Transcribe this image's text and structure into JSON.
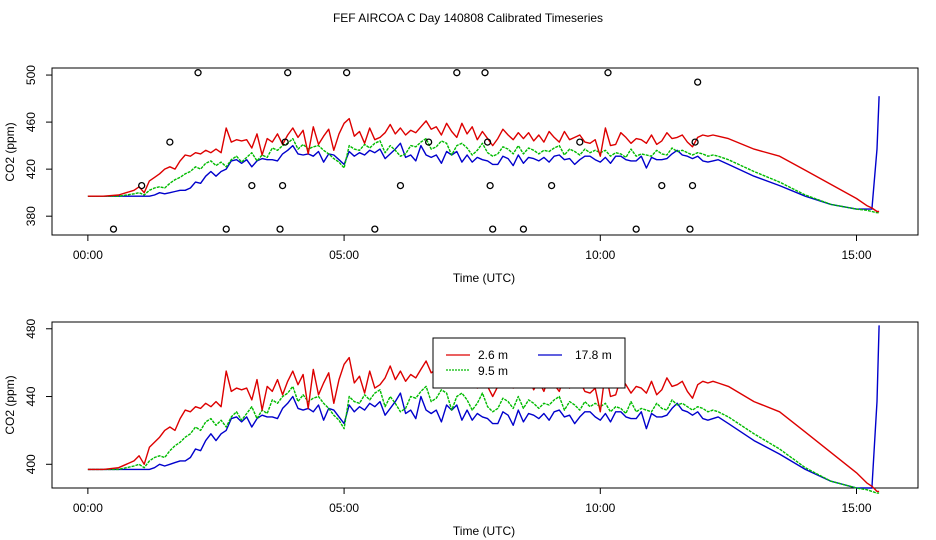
{
  "figure_title": "FEF AIRCOA C  Day 140808  Calibrated Timeseries",
  "colors": {
    "r2_6": "#dd0000",
    "r9_5": "#00bb00",
    "r17_8": "#0000cc",
    "axis": "#000000"
  },
  "chart_data": [
    {
      "type": "line",
      "title": "",
      "xlabel": "Time (UTC)",
      "ylabel": "CO2 (ppm)",
      "xlim": [
        -0.7,
        16.2
      ],
      "ylim": [
        364,
        506
      ],
      "xticks": [
        0,
        5,
        10,
        15
      ],
      "xtick_labels": [
        "00:00",
        "05:00",
        "10:00",
        "15:00"
      ],
      "yticks": [
        380,
        420,
        460,
        500
      ],
      "ytick_labels": [
        "380",
        "420",
        "460",
        "500"
      ],
      "grid": false,
      "legend": "none",
      "x": [
        0,
        0.3,
        0.6,
        0.9,
        1.0,
        1.1,
        1.2,
        1.3,
        1.4,
        1.5,
        1.6,
        1.7,
        1.8,
        1.9,
        2.0,
        2.1,
        2.2,
        2.3,
        2.4,
        2.5,
        2.6,
        2.7,
        2.8,
        2.9,
        3.0,
        3.1,
        3.2,
        3.3,
        3.4,
        3.5,
        3.6,
        3.7,
        3.8,
        3.9,
        4.0,
        4.1,
        4.2,
        4.3,
        4.4,
        4.5,
        4.6,
        4.7,
        4.8,
        4.9,
        5.0,
        5.1,
        5.2,
        5.3,
        5.4,
        5.5,
        5.6,
        5.7,
        5.8,
        5.9,
        6.0,
        6.1,
        6.2,
        6.3,
        6.4,
        6.5,
        6.6,
        6.7,
        6.8,
        6.9,
        7.0,
        7.1,
        7.2,
        7.3,
        7.4,
        7.5,
        7.6,
        7.7,
        7.8,
        7.9,
        8.0,
        8.1,
        8.2,
        8.3,
        8.4,
        8.5,
        8.6,
        8.7,
        8.8,
        8.9,
        9.0,
        9.1,
        9.2,
        9.3,
        9.4,
        9.5,
        9.6,
        9.7,
        9.8,
        9.9,
        10.0,
        10.1,
        10.2,
        10.3,
        10.4,
        10.5,
        10.6,
        10.7,
        10.8,
        10.9,
        11.0,
        11.1,
        11.2,
        11.3,
        11.4,
        11.5,
        11.6,
        11.7,
        11.8,
        11.9,
        12.0,
        12.1,
        12.2,
        12.3,
        12.5,
        13.0,
        13.5,
        14.0,
        14.5,
        15.0,
        15.2,
        15.3,
        15.4,
        15.44
      ],
      "series": [
        {
          "name": "2.6 m",
          "color_key": "r2_6",
          "values": [
            397,
            397,
            398,
            402,
            405,
            400,
            410,
            413,
            416,
            420,
            422,
            420,
            427,
            432,
            431,
            434,
            433,
            436,
            434,
            437,
            434,
            455,
            443,
            445,
            444,
            445,
            438,
            450,
            432,
            446,
            443,
            450,
            441,
            449,
            455,
            447,
            453,
            433,
            456,
            441,
            448,
            454,
            436,
            450,
            459,
            463,
            448,
            452,
            442,
            455,
            445,
            447,
            451,
            458,
            450,
            455,
            449,
            453,
            451,
            456,
            461,
            454,
            456,
            449,
            459,
            452,
            447,
            459,
            450,
            456,
            445,
            452,
            446,
            440,
            446,
            454,
            449,
            445,
            451,
            446,
            451,
            444,
            449,
            443,
            452,
            447,
            443,
            452,
            445,
            447,
            449,
            443,
            442,
            445,
            431,
            455,
            440,
            441,
            451,
            447,
            442,
            446,
            445,
            442,
            449,
            441,
            444,
            451,
            446,
            447,
            449,
            443,
            439,
            447,
            449,
            448,
            449,
            448,
            446,
            437,
            431,
            419,
            407,
            395,
            389,
            387,
            384,
            384
          ]
        },
        {
          "name": "9.5 m",
          "color_key": "r9_5",
          "values": [
            397,
            397,
            397,
            399,
            400,
            398,
            402,
            404,
            405,
            404,
            408,
            411,
            413,
            416,
            418,
            422,
            420,
            425,
            427,
            423,
            426,
            422,
            428,
            431,
            426,
            430,
            434,
            427,
            432,
            430,
            438,
            436,
            440,
            442,
            446,
            437,
            441,
            437,
            439,
            440,
            436,
            433,
            429,
            426,
            421,
            440,
            437,
            436,
            441,
            438,
            442,
            444,
            434,
            440,
            436,
            431,
            433,
            440,
            439,
            443,
            446,
            437,
            439,
            444,
            442,
            432,
            440,
            442,
            438,
            432,
            436,
            442,
            434,
            431,
            433,
            439,
            437,
            433,
            440,
            433,
            438,
            436,
            433,
            436,
            435,
            438,
            440,
            432,
            437,
            435,
            432,
            437,
            434,
            436,
            434,
            436,
            431,
            434,
            433,
            430,
            437,
            431,
            433,
            432,
            431,
            436,
            433,
            432,
            438,
            435,
            436,
            434,
            432,
            434,
            433,
            431,
            432,
            431,
            428,
            418,
            409,
            398,
            390,
            386,
            385,
            384,
            383,
            383
          ]
        },
        {
          "name": "17.8 m",
          "color_key": "r17_8",
          "values": [
            397,
            397,
            397,
            397,
            397,
            397,
            397,
            398,
            400,
            399,
            400,
            401,
            402,
            402,
            404,
            409,
            408,
            414,
            418,
            414,
            418,
            420,
            427,
            428,
            425,
            428,
            422,
            427,
            429,
            428,
            428,
            427,
            433,
            436,
            440,
            433,
            432,
            433,
            431,
            435,
            426,
            433,
            432,
            428,
            424,
            435,
            431,
            434,
            432,
            436,
            434,
            437,
            429,
            433,
            437,
            442,
            430,
            432,
            427,
            440,
            432,
            430,
            432,
            425,
            435,
            432,
            435,
            426,
            432,
            426,
            430,
            428,
            427,
            424,
            424,
            431,
            429,
            423,
            432,
            425,
            430,
            429,
            427,
            430,
            426,
            431,
            432,
            428,
            429,
            424,
            428,
            431,
            431,
            428,
            426,
            430,
            425,
            431,
            431,
            428,
            427,
            427,
            431,
            421,
            430,
            428,
            428,
            429,
            433,
            436,
            432,
            431,
            429,
            431,
            427,
            426,
            427,
            428,
            424,
            414,
            406,
            397,
            390,
            386,
            386,
            386,
            437,
            482
          ]
        }
      ],
      "points": {
        "symbol": "circle",
        "x": [
          0.5,
          1.05,
          1.6,
          2.15,
          2.7,
          3.2,
          3.75,
          3.8,
          3.85,
          3.9,
          5.05,
          5.6,
          6.1,
          6.65,
          7.2,
          7.75,
          7.8,
          7.85,
          7.9,
          8.5,
          9.05,
          9.6,
          10.15,
          10.7,
          11.2,
          11.75,
          11.8,
          11.85,
          11.9
        ],
        "y": [
          369,
          406,
          443,
          502,
          369,
          406,
          369,
          406,
          443,
          502,
          502,
          369,
          406,
          443,
          502,
          502,
          443,
          406,
          369,
          369,
          406,
          443,
          502,
          369,
          406,
          369,
          406,
          443,
          494
        ]
      }
    },
    {
      "type": "line",
      "title": "",
      "xlabel": "Time (UTC)",
      "ylabel": "CO2 (ppm)",
      "xlim": [
        -0.7,
        16.2
      ],
      "ylim": [
        386,
        484
      ],
      "xticks": [
        0,
        5,
        10,
        15
      ],
      "xtick_labels": [
        "00:00",
        "05:00",
        "10:00",
        "15:00"
      ],
      "yticks": [
        400,
        440,
        480
      ],
      "ytick_labels": [
        "400",
        "440",
        "480"
      ],
      "grid": false,
      "legend": "top-center",
      "same_series_as": 0
    }
  ],
  "legend": {
    "entries": [
      {
        "label": "2.6 m",
        "color_key": "r2_6"
      },
      {
        "label": "17.8 m",
        "color_key": "r17_8"
      },
      {
        "label": "9.5 m",
        "color_key": "r9_5"
      }
    ]
  }
}
